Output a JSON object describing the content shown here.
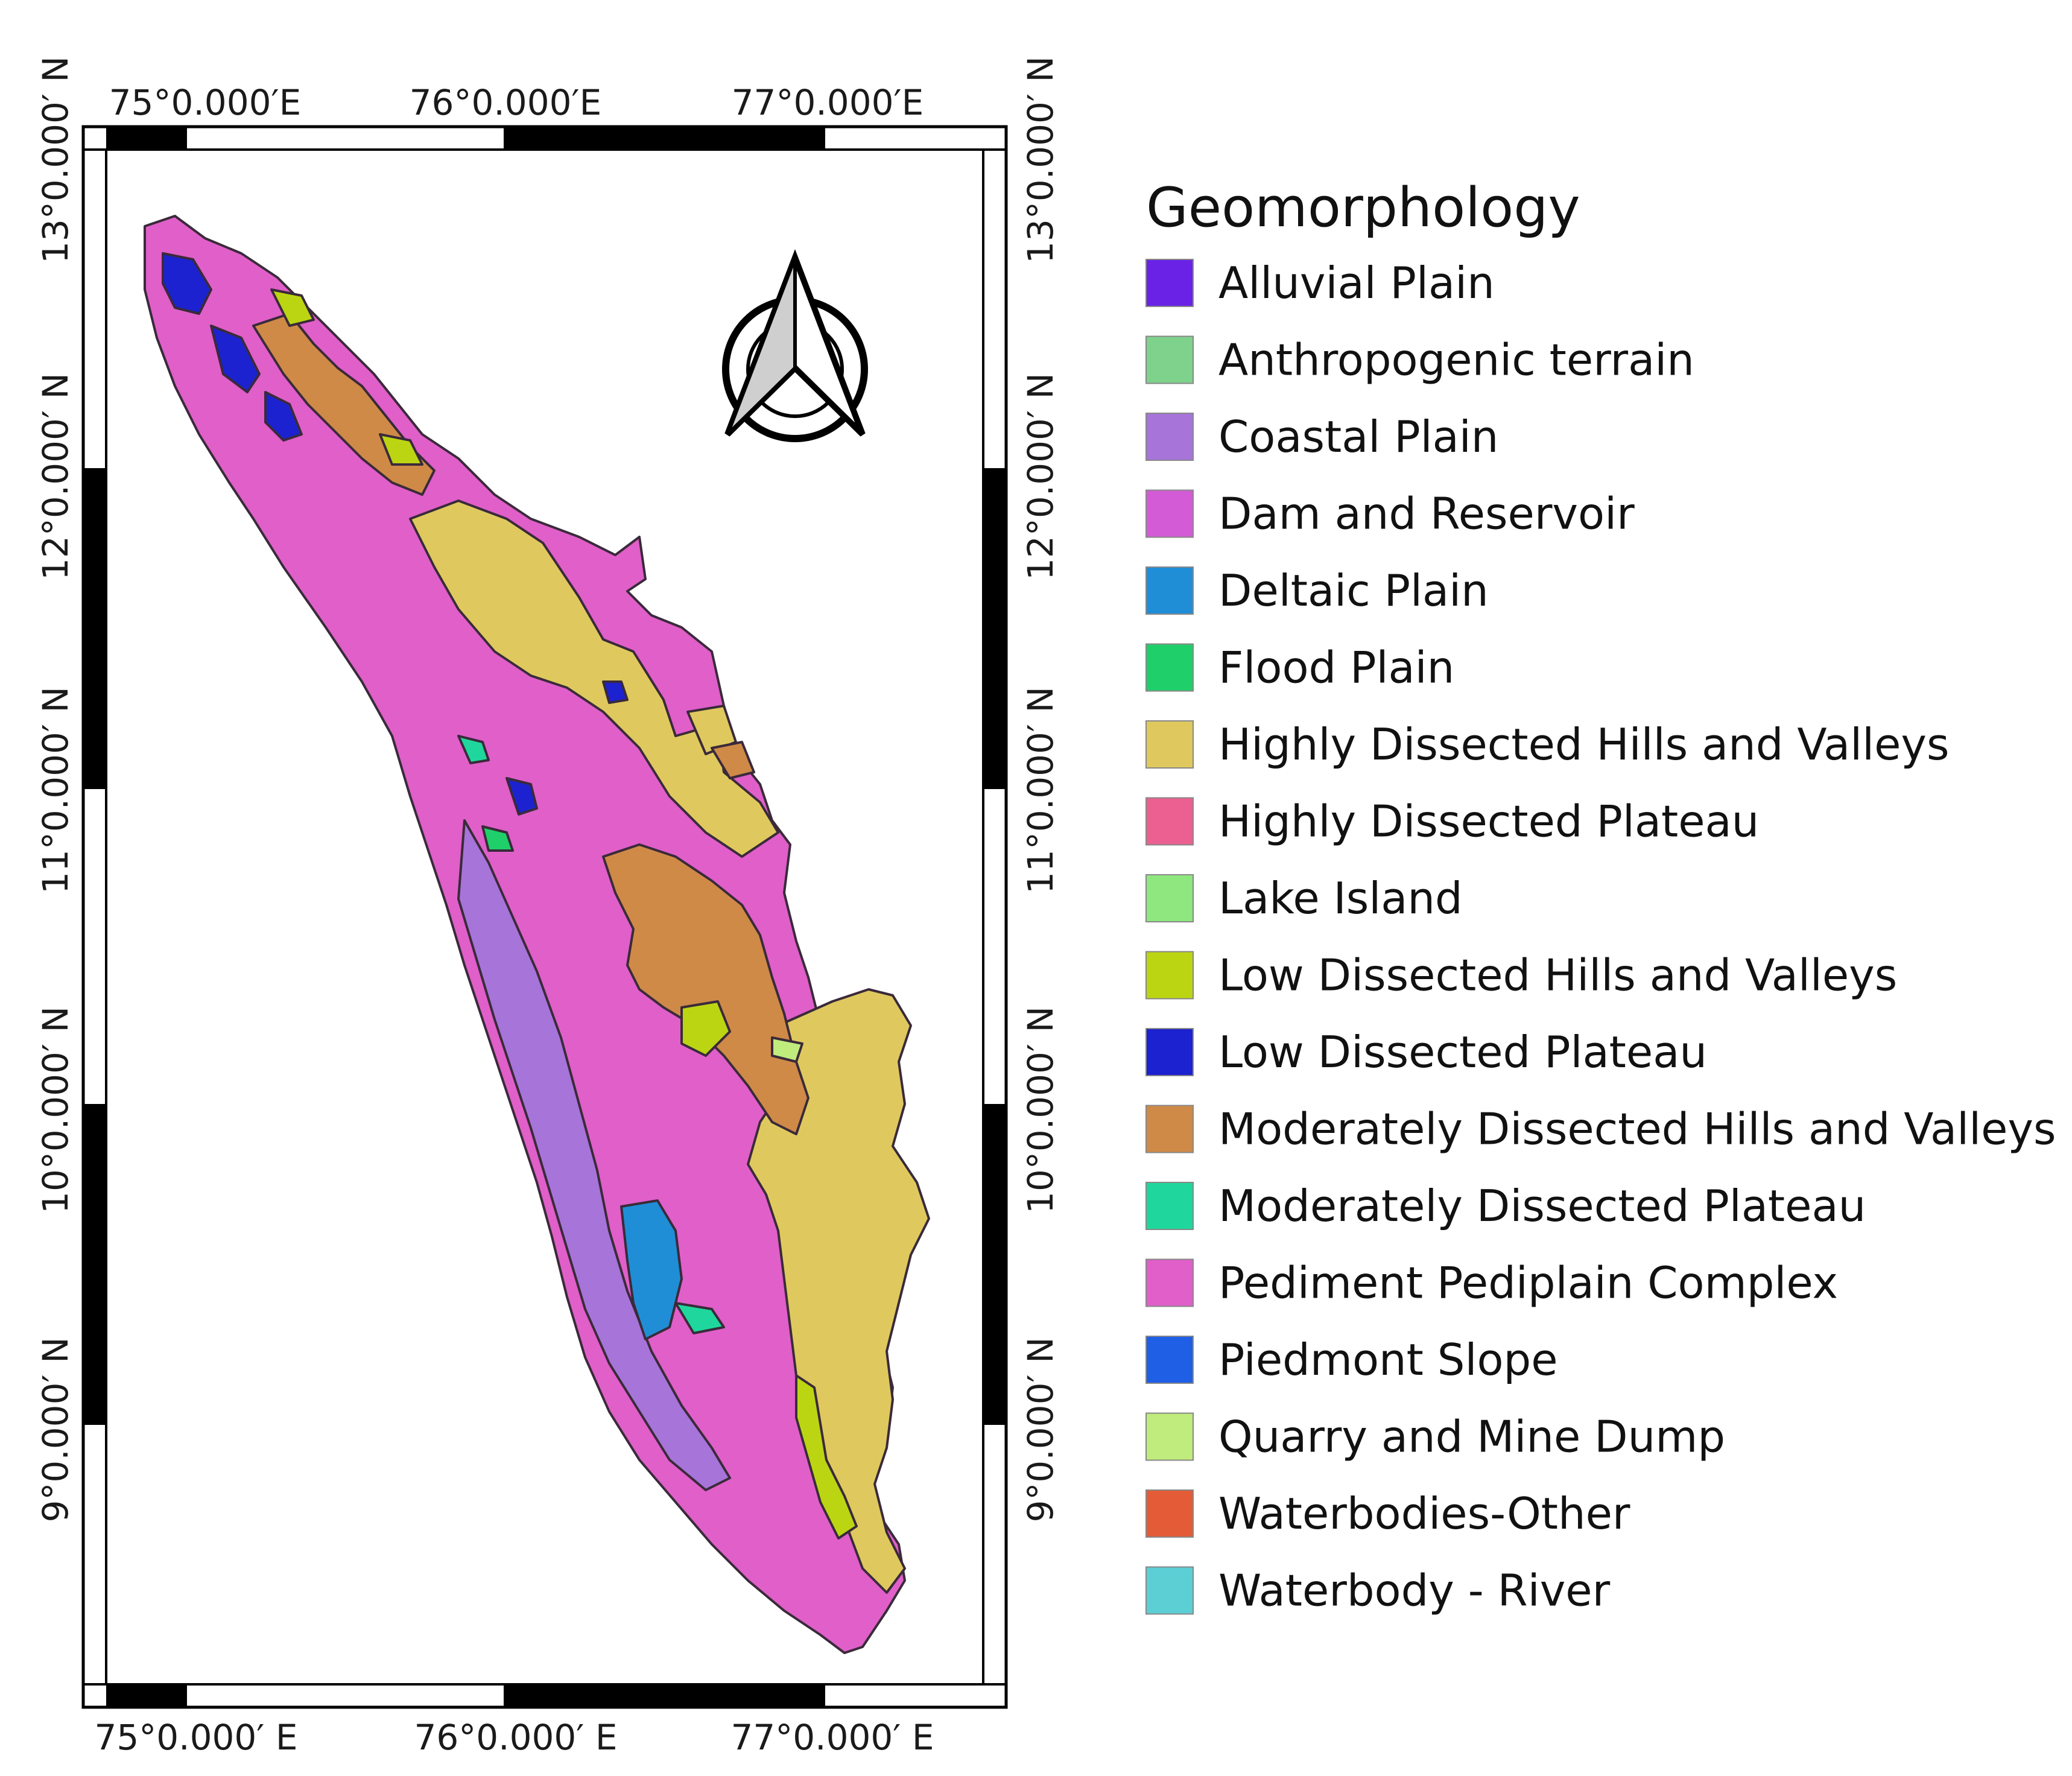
{
  "map": {
    "top_lon_labels": [
      "75°0.000′E",
      "76°0.000′E",
      "77°0.000′E"
    ],
    "bottom_lon_labels": [
      "75°0.000′ E",
      "76°0.000′ E",
      "77°0.000′ E"
    ],
    "left_lat_labels": [
      "13°0.000′ N",
      "12°0.000′ N",
      "11°0.000′ N",
      "10°0.000′ N",
      "9°0.000′ N"
    ],
    "right_lat_labels": [
      "13°0.000′ N",
      "12°0.000′ N",
      "11°0.000′ N",
      "10°0.000′ N",
      "9°0.000′ N"
    ],
    "north_arrow_icon": "north-arrow-icon"
  },
  "legend": {
    "title": "Geomorphology",
    "items": [
      {
        "label": "Alluvial Plain",
        "color": "#6a22e6"
      },
      {
        "label": "Anthropogenic terrain",
        "color": "#7fd28c"
      },
      {
        "label": "Coastal Plain",
        "color": "#a774d9"
      },
      {
        "label": "Dam and Reservoir",
        "color": "#d35cd6"
      },
      {
        "label": "Deltaic Plain",
        "color": "#1f8ed6"
      },
      {
        "label": "Flood Plain",
        "color": "#1fcf6a"
      },
      {
        "label": "Highly Dissected Hills and Valleys",
        "color": "#dfc95e"
      },
      {
        "label": "Highly Dissected Plateau",
        "color": "#ec5f91"
      },
      {
        "label": "Lake Island",
        "color": "#8ee87f"
      },
      {
        "label": "Low Dissected Hills and Valleys",
        "color": "#bcd512"
      },
      {
        "label": "Low Dissected Plateau",
        "color": "#1c22cf"
      },
      {
        "label": "Moderately Dissected Hills and Valleys",
        "color": "#cf8a47"
      },
      {
        "label": "Moderately Dissected Plateau",
        "color": "#1fd79c"
      },
      {
        "label": "Pediment Pediplain Complex",
        "color": "#e05fc9"
      },
      {
        "label": "Piedmont Slope",
        "color": "#1f5fe6"
      },
      {
        "label": "Quarry and Mine Dump",
        "color": "#bfec7c"
      },
      {
        "label": "Waterbodies-Other",
        "color": "#e35c37"
      },
      {
        "label": "Waterbody - River",
        "color": "#5ccfd5"
      }
    ]
  }
}
